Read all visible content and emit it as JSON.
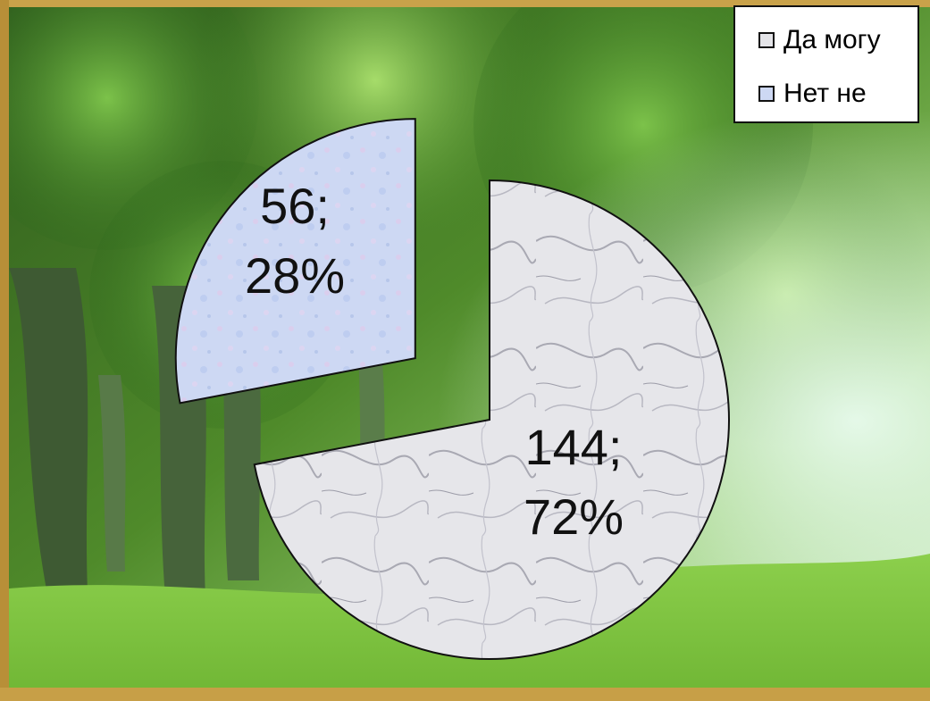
{
  "chart_data": {
    "type": "pie",
    "legend_position": "top-right",
    "categories": [
      "Да могу",
      "Нет не"
    ],
    "values": [
      144,
      56
    ],
    "percents": [
      "72%",
      "28%"
    ],
    "value_labels": [
      "144;",
      "56;"
    ],
    "colors": [
      "#e4e4e8",
      "#cdd8f3"
    ],
    "exploded": true
  },
  "legend": {
    "items": [
      {
        "label": "Да могу",
        "color": "#e4e4e8"
      },
      {
        "label": "Нет не",
        "color": "#cdd8f3"
      }
    ]
  }
}
